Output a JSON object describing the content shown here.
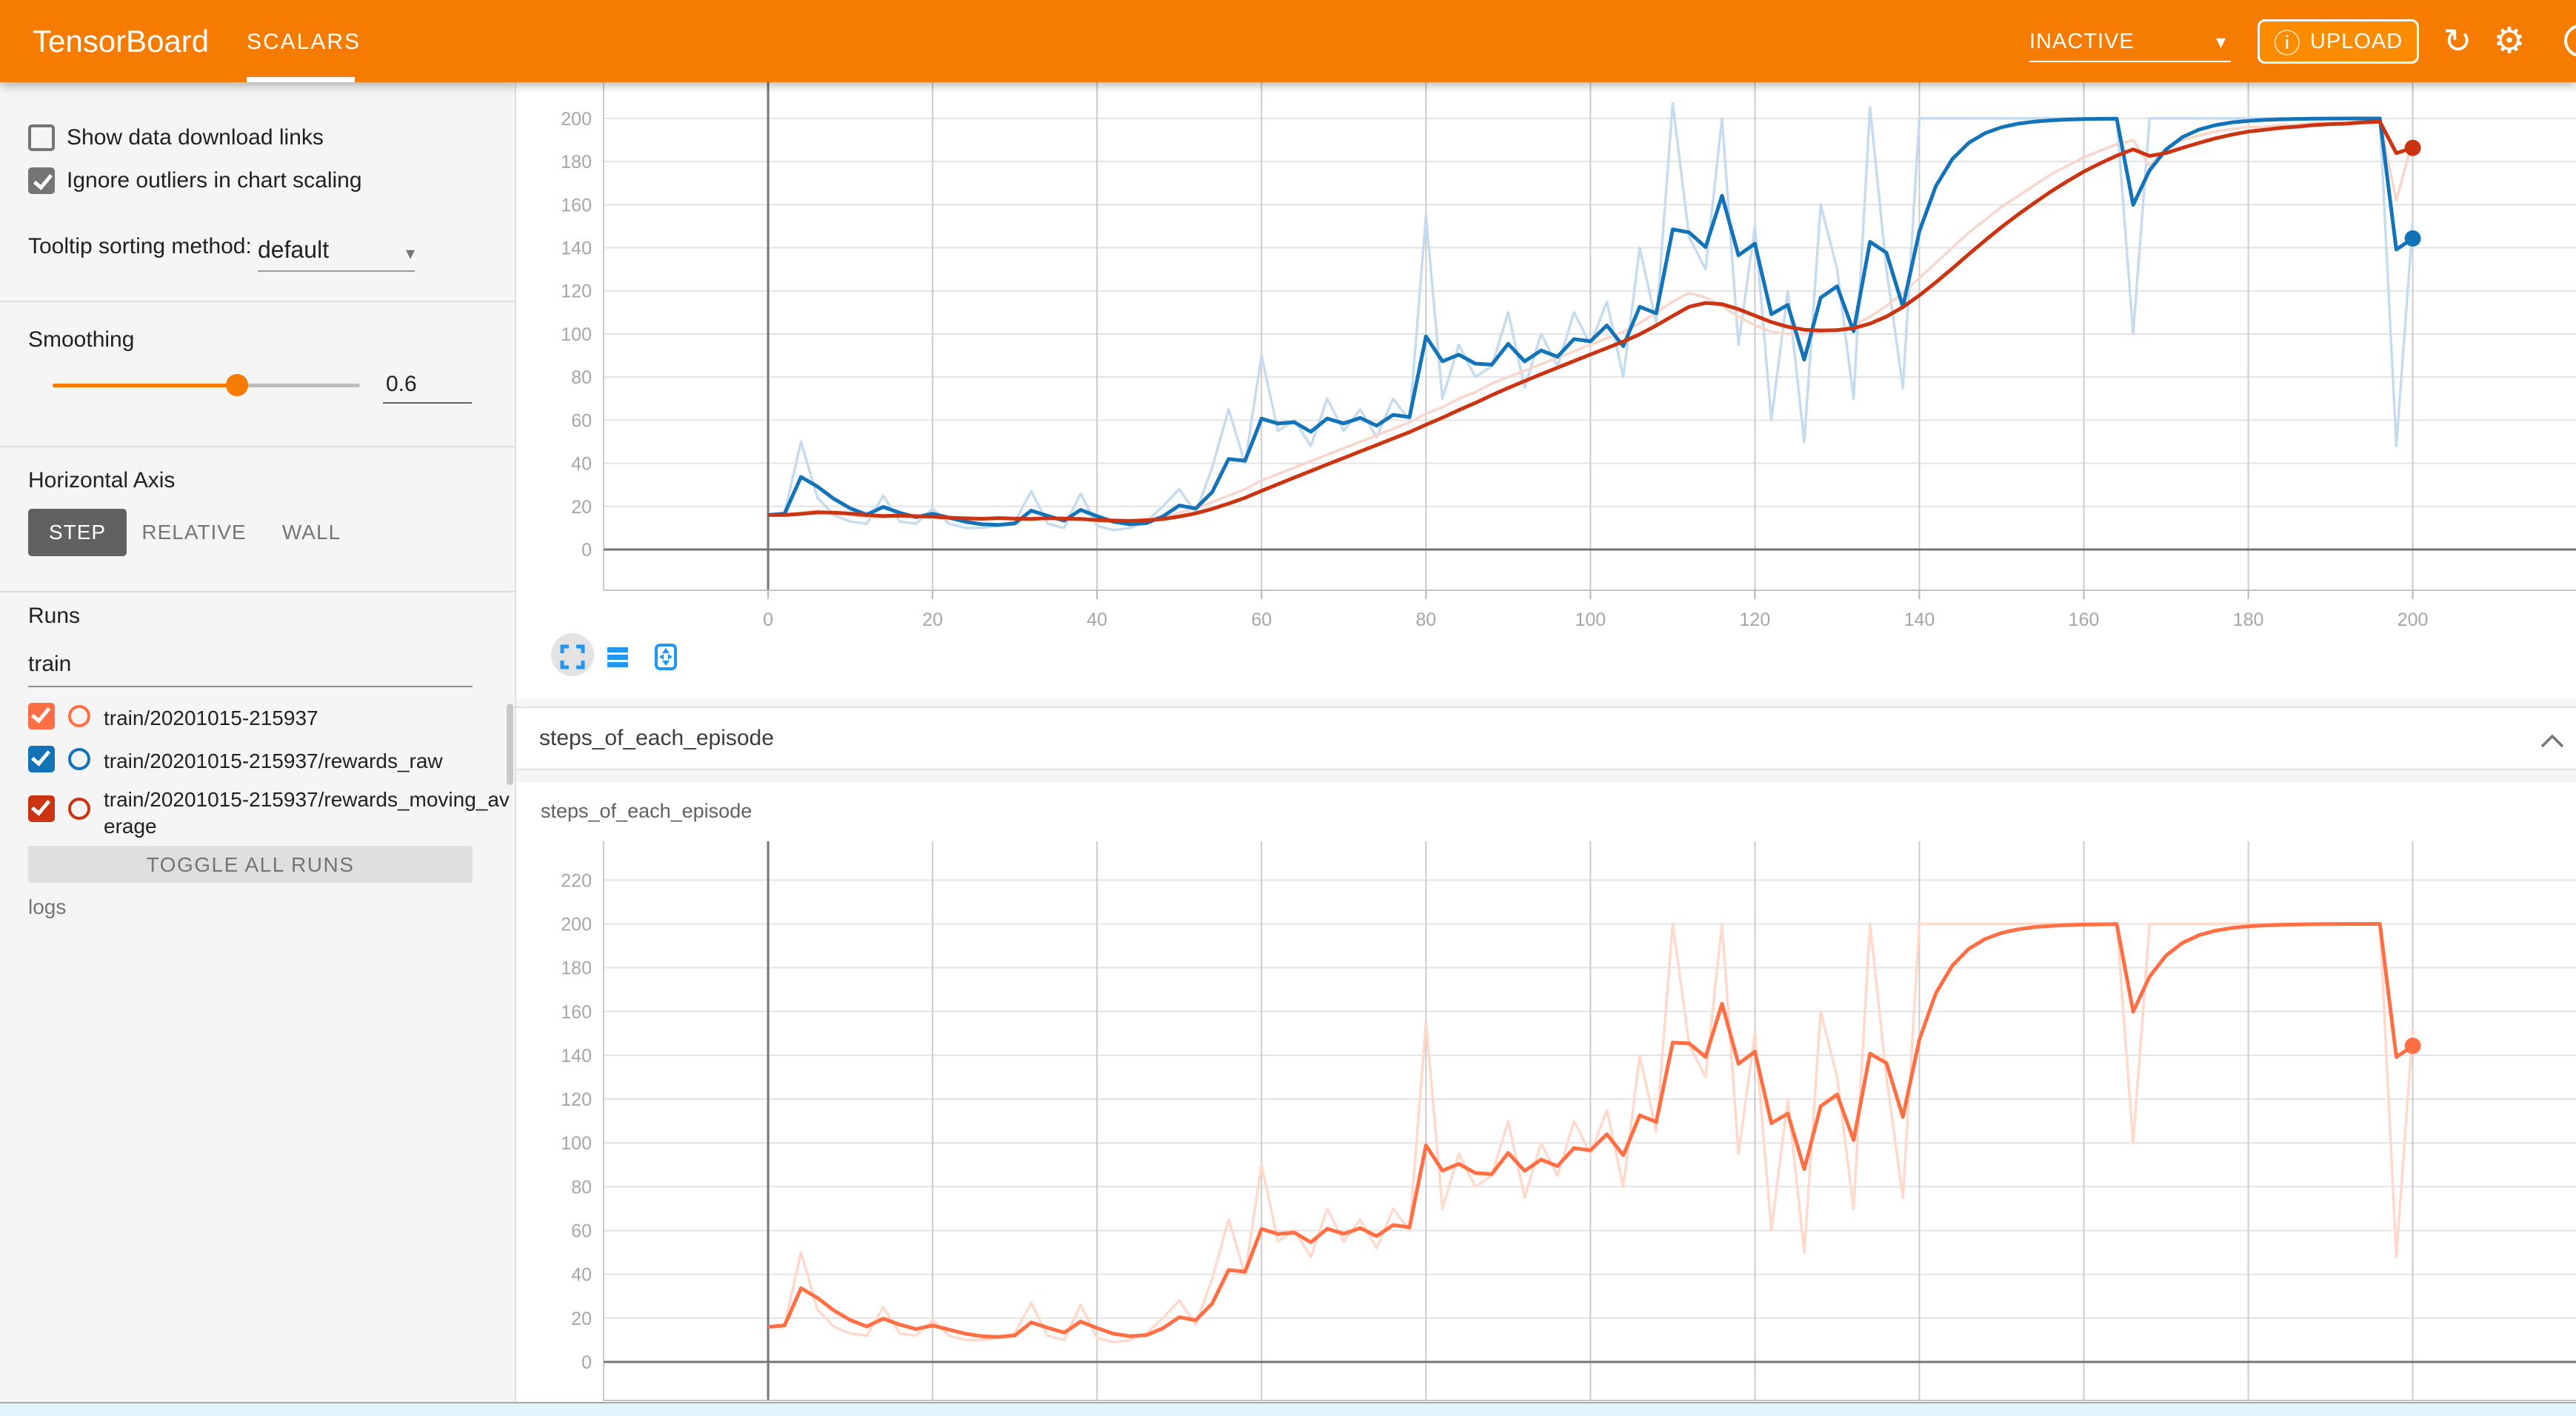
{
  "header": {
    "title": "TensorBoard",
    "tab": "SCALARS",
    "status_dropdown": "INACTIVE",
    "upload_label": "UPLOAD",
    "icons": [
      "info-icon",
      "refresh-icon",
      "gear-icon",
      "help-icon"
    ],
    "colors": {
      "bar": "#f57c00",
      "upload_button": "#fb8c00"
    }
  },
  "sidebar": {
    "checkboxes": [
      {
        "label": "Show data download links",
        "checked": false
      },
      {
        "label": "Ignore outliers in chart scaling",
        "checked": true
      }
    ],
    "tooltip_sorting": {
      "label": "Tooltip sorting method:",
      "value": "default"
    },
    "smoothing": {
      "label": "Smoothing",
      "value": "0.6",
      "fraction": 0.6
    },
    "horizontal_axis": {
      "label": "Horizontal Axis",
      "options": [
        "STEP",
        "RELATIVE",
        "WALL"
      ],
      "selected": "STEP"
    },
    "runs": {
      "label": "Runs",
      "filter_value": "train",
      "items": [
        {
          "label": "train/20201015-215937",
          "color": "#ff6f43",
          "checked": true
        },
        {
          "label": "train/20201015-215937/rewards_raw",
          "color": "#1273b8",
          "checked": true
        },
        {
          "label": "train/20201015-215937/rewards_moving_average",
          "color": "#cc3311",
          "checked": true
        }
      ],
      "toggle_all_label": "TOGGLE ALL RUNS",
      "footer": "logs"
    }
  },
  "section": {
    "title": "steps_of_each_episode",
    "collapse_icon": "chevron-up-icon"
  },
  "chart_toolbar_icons": [
    "expand-chart-icon",
    "toggle-expanded-view-icon",
    "fit-domain-to-data-icon"
  ],
  "chart_data": [
    {
      "type": "line",
      "title": "",
      "xlabel": "step",
      "ylabel": "",
      "xlim": [
        -20,
        219.85
      ],
      "ylim": [
        -18.9,
        216.8
      ],
      "xticks": [
        0,
        20,
        40,
        60,
        80,
        100,
        120,
        140,
        160,
        180,
        200
      ],
      "xgrid_extra": [
        -20
      ],
      "yticks": [
        0,
        20,
        40,
        60,
        80,
        100,
        120,
        140,
        160,
        180,
        200
      ],
      "grid": true,
      "legend_position": "none",
      "show_x_labels": true,
      "x_tick_marks": true,
      "smoothing": 0.6,
      "series": [
        {
          "name": "train/20201015-215937/rewards_raw",
          "color": "#1273b8",
          "raw_color": "#c6dcee",
          "end_dot": true,
          "x_start": 0,
          "x_step": 2,
          "raw": [
            16,
            17,
            50,
            24,
            16,
            13,
            12,
            25,
            13,
            12,
            19,
            12,
            10,
            10,
            11,
            13,
            27,
            12,
            10,
            26,
            11,
            9,
            10,
            13,
            20,
            28,
            17,
            38,
            65,
            40,
            90,
            55,
            60,
            48,
            70,
            55,
            65,
            52,
            70,
            60,
            155,
            70,
            95,
            80,
            85,
            110,
            75,
            100,
            85,
            110,
            95,
            115,
            80,
            140,
            105,
            207,
            145,
            130,
            200,
            95,
            150,
            60,
            120,
            50,
            160,
            130,
            70,
            205,
            130,
            75,
            200,
            200,
            200,
            200,
            200,
            200,
            200,
            200,
            200,
            200,
            200,
            200,
            200,
            100,
            200,
            200,
            200,
            200,
            200,
            200,
            200,
            200,
            200,
            200,
            200,
            200,
            200,
            200,
            200,
            48,
            152
          ]
        },
        {
          "name": "train/20201015-215937/rewards_moving_average",
          "color": "#cc3311",
          "raw_color": "#f7d6cc",
          "end_dot": true,
          "x_start": 0,
          "x_step": 2,
          "raw": [
            16,
            16,
            17,
            18,
            17,
            16,
            15,
            15,
            16,
            15,
            15,
            14,
            14,
            14,
            15,
            14,
            14,
            15,
            14,
            14,
            13,
            13,
            13,
            14,
            15,
            17,
            19,
            22,
            25,
            28,
            32,
            35,
            38,
            41,
            44,
            47,
            50,
            53,
            56,
            59,
            63,
            66,
            70,
            73,
            77,
            80,
            83,
            86,
            89,
            92,
            95,
            98,
            101,
            105,
            110,
            115,
            119,
            117,
            113,
            108,
            104,
            101,
            100,
            100,
            101,
            102,
            104,
            108,
            113,
            119,
            126,
            133,
            140,
            147,
            153,
            159,
            164,
            169,
            174,
            178,
            182,
            185,
            188,
            190,
            178,
            186,
            190,
            192,
            194,
            195,
            196,
            196,
            197,
            197,
            198,
            198,
            198,
            199,
            199,
            162,
            190
          ]
        }
      ]
    },
    {
      "type": "line",
      "title": "steps_of_each_episode",
      "xlabel": "step",
      "ylabel": "",
      "xlim": [
        -20,
        219.85
      ],
      "ylim": [
        -17.6,
        237.7
      ],
      "xticks": [
        0,
        20,
        40,
        60,
        80,
        100,
        120,
        140,
        160,
        180,
        200
      ],
      "xgrid_extra": [
        -20
      ],
      "yticks": [
        0,
        20,
        40,
        60,
        80,
        100,
        120,
        140,
        160,
        180,
        200,
        220
      ],
      "grid": true,
      "legend_position": "none",
      "show_x_labels": false,
      "x_tick_marks": false,
      "smoothing": 0.6,
      "series": [
        {
          "name": "train/20201015-215937",
          "color": "#ff6f43",
          "raw_color": "#ffd9cc",
          "end_dot": true,
          "x_start": 0,
          "x_step": 2,
          "raw": [
            16,
            17,
            50,
            24,
            16,
            13,
            12,
            25,
            13,
            12,
            19,
            12,
            10,
            10,
            11,
            13,
            27,
            12,
            10,
            26,
            11,
            9,
            10,
            13,
            20,
            28,
            17,
            38,
            65,
            40,
            90,
            55,
            60,
            48,
            70,
            55,
            65,
            52,
            70,
            60,
            155,
            70,
            95,
            80,
            85,
            110,
            75,
            100,
            85,
            110,
            95,
            115,
            80,
            140,
            105,
            200,
            145,
            130,
            200,
            95,
            150,
            60,
            120,
            50,
            160,
            130,
            70,
            200,
            130,
            75,
            200,
            200,
            200,
            200,
            200,
            200,
            200,
            200,
            200,
            200,
            200,
            200,
            200,
            100,
            200,
            200,
            200,
            200,
            200,
            200,
            200,
            200,
            200,
            200,
            200,
            200,
            200,
            200,
            200,
            48,
            152
          ]
        }
      ]
    }
  ]
}
